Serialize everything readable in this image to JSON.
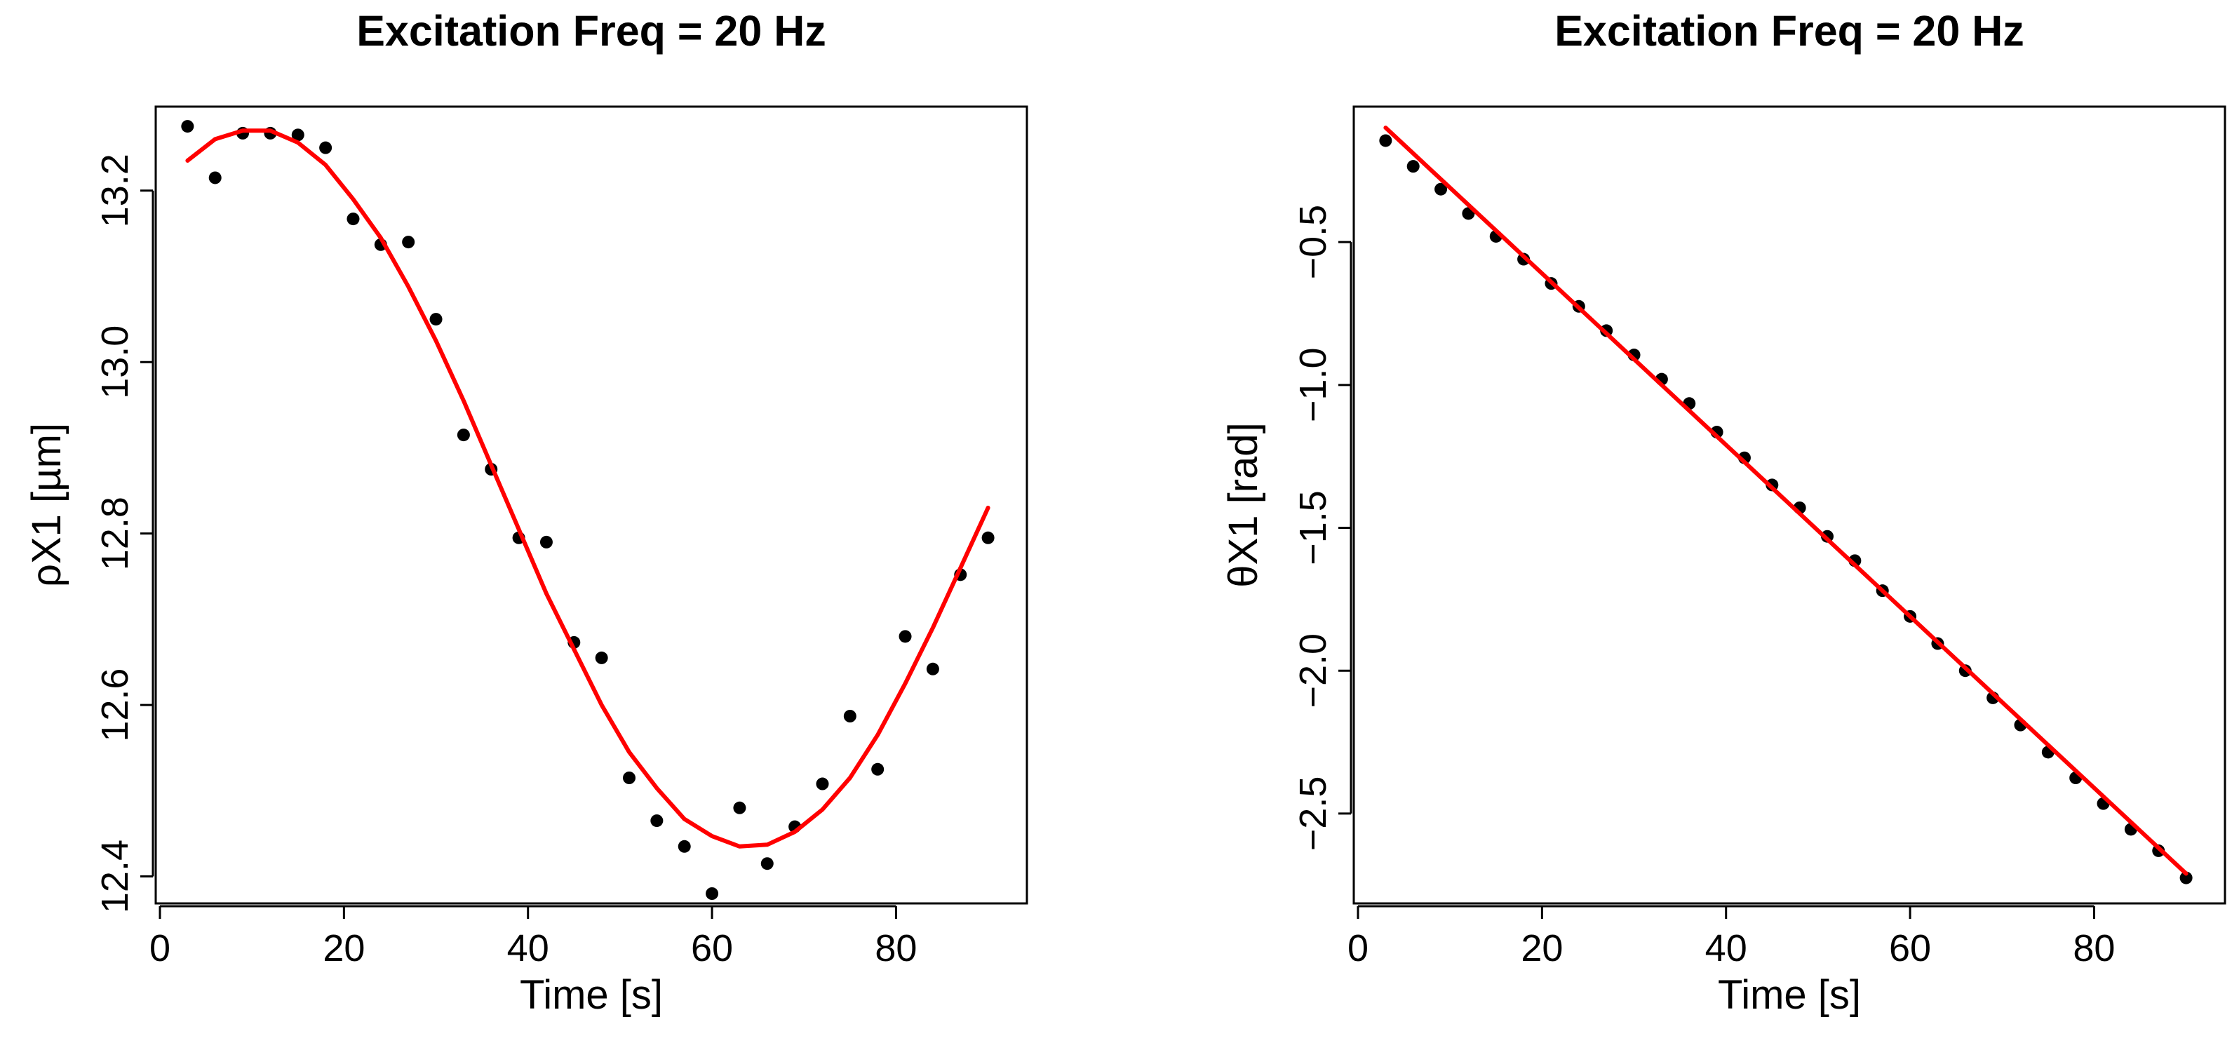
{
  "chart_data": [
    {
      "type": "scatter",
      "title": "Excitation Freq = 20 Hz",
      "xlabel": "Time [s]",
      "ylabel": "ρX1 [µm]",
      "xlim": [
        0,
        90
      ],
      "ylim": [
        12.38,
        13.28
      ],
      "xticks": [
        0,
        20,
        40,
        60,
        80
      ],
      "xtick_labels": [
        "0",
        "20",
        "40",
        "60",
        "80"
      ],
      "yticks": [
        12.4,
        12.6,
        12.8,
        13.0,
        13.2
      ],
      "ytick_labels": [
        "12.4",
        "12.6",
        "12.8",
        "13.0",
        "13.2"
      ],
      "series": [
        {
          "name": "observed",
          "kind": "points",
          "color": "#000000",
          "x": [
            3,
            6,
            9,
            12,
            15,
            18,
            21,
            24,
            27,
            30,
            33,
            36,
            39,
            42,
            45,
            48,
            51,
            54,
            57,
            60,
            63,
            66,
            69,
            72,
            75,
            78,
            81,
            84,
            87,
            90
          ],
          "y": [
            13.275,
            13.215,
            13.267,
            13.267,
            13.265,
            13.25,
            13.167,
            13.137,
            13.14,
            13.05,
            12.915,
            12.875,
            12.795,
            12.79,
            12.673,
            12.655,
            12.515,
            12.465,
            12.435,
            12.38,
            12.48,
            12.415,
            12.458,
            12.508,
            12.587,
            12.525,
            12.68,
            12.642,
            12.752,
            12.795
          ]
        },
        {
          "name": "fit",
          "kind": "line",
          "color": "#ff0000",
          "x": [
            3,
            6,
            9,
            12,
            15,
            18,
            21,
            24,
            27,
            30,
            33,
            36,
            39,
            42,
            45,
            48,
            51,
            54,
            57,
            60,
            63,
            66,
            69,
            72,
            75,
            78,
            81,
            84,
            87,
            90
          ],
          "y": [
            13.235,
            13.26,
            13.27,
            13.27,
            13.256,
            13.23,
            13.19,
            13.145,
            13.088,
            13.025,
            12.955,
            12.88,
            12.805,
            12.73,
            12.665,
            12.6,
            12.545,
            12.503,
            12.467,
            12.447,
            12.435,
            12.437,
            12.452,
            12.478,
            12.515,
            12.565,
            12.625,
            12.69,
            12.76,
            12.83
          ]
        }
      ]
    },
    {
      "type": "scatter",
      "title": "Excitation Freq = 20 Hz",
      "xlabel": "Time [s]",
      "ylabel": "θX1 [rad]",
      "xlim": [
        0,
        90
      ],
      "ylim": [
        -2.78,
        -0.08
      ],
      "xticks": [
        0,
        20,
        40,
        60,
        80
      ],
      "xtick_labels": [
        "0",
        "20",
        "40",
        "60",
        "80"
      ],
      "yticks": [
        -2.5,
        -2.0,
        -1.5,
        -1.0,
        -0.5
      ],
      "ytick_labels": [
        "−2.5",
        "−2.0",
        "−1.5",
        "−1.0",
        "−0.5"
      ],
      "series": [
        {
          "name": "observed",
          "kind": "points",
          "color": "#000000",
          "x": [
            3,
            6,
            9,
            12,
            15,
            18,
            21,
            24,
            27,
            30,
            33,
            36,
            39,
            42,
            45,
            48,
            51,
            54,
            57,
            60,
            63,
            66,
            69,
            72,
            75,
            78,
            81,
            84,
            87,
            90
          ],
          "y": [
            -0.145,
            -0.235,
            -0.315,
            -0.4,
            -0.48,
            -0.56,
            -0.645,
            -0.725,
            -0.81,
            -0.895,
            -0.98,
            -1.065,
            -1.165,
            -1.255,
            -1.35,
            -1.43,
            -1.53,
            -1.615,
            -1.72,
            -1.81,
            -1.905,
            -2.0,
            -2.095,
            -2.19,
            -2.285,
            -2.375,
            -2.465,
            -2.555,
            -2.63,
            -2.725
          ]
        },
        {
          "name": "fit",
          "kind": "line",
          "color": "#ff0000",
          "x": [
            3,
            90
          ],
          "y": [
            -0.1,
            -2.71
          ]
        }
      ]
    }
  ]
}
